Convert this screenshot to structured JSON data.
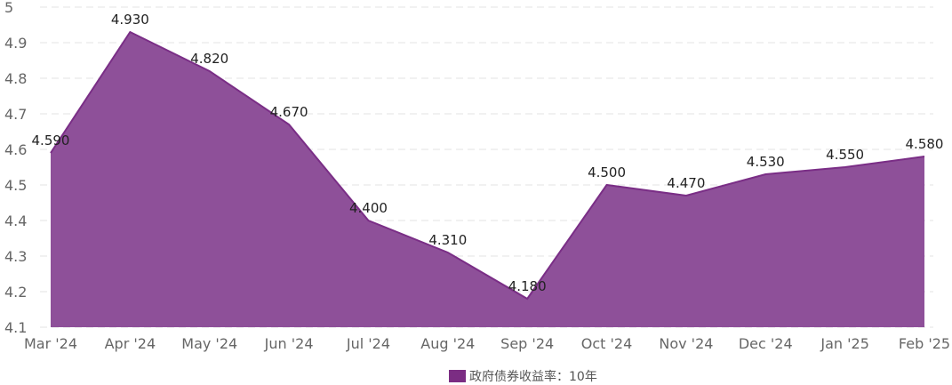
{
  "chart_data": {
    "type": "area",
    "categories": [
      "Mar '24",
      "Apr '24",
      "May '24",
      "Jun '24",
      "Jul '24",
      "Aug '24",
      "Sep '24",
      "Oct '24",
      "Nov '24",
      "Dec '24",
      "Jan '25",
      "Feb '25"
    ],
    "series": [
      {
        "name": "政府债券收益率：10年",
        "values": [
          4.59,
          4.93,
          4.82,
          4.67,
          4.4,
          4.31,
          4.18,
          4.5,
          4.47,
          4.53,
          4.55,
          4.58
        ],
        "labels": [
          "4.590",
          "4.930",
          "4.820",
          "4.670",
          "4.400",
          "4.310",
          "4.180",
          "4.500",
          "4.470",
          "4.530",
          "4.550",
          "4.580"
        ],
        "color": "#8e5099",
        "line_color": "#7a2e86"
      }
    ],
    "y_ticks": [
      "4.1",
      "4.2",
      "4.3",
      "4.4",
      "4.5",
      "4.6",
      "4.7",
      "4.8",
      "4.9",
      "5"
    ],
    "ylim": [
      4.1,
      5.0
    ],
    "grid": true,
    "legend_position": "bottom-center",
    "legend_color": "#7b2d83"
  }
}
